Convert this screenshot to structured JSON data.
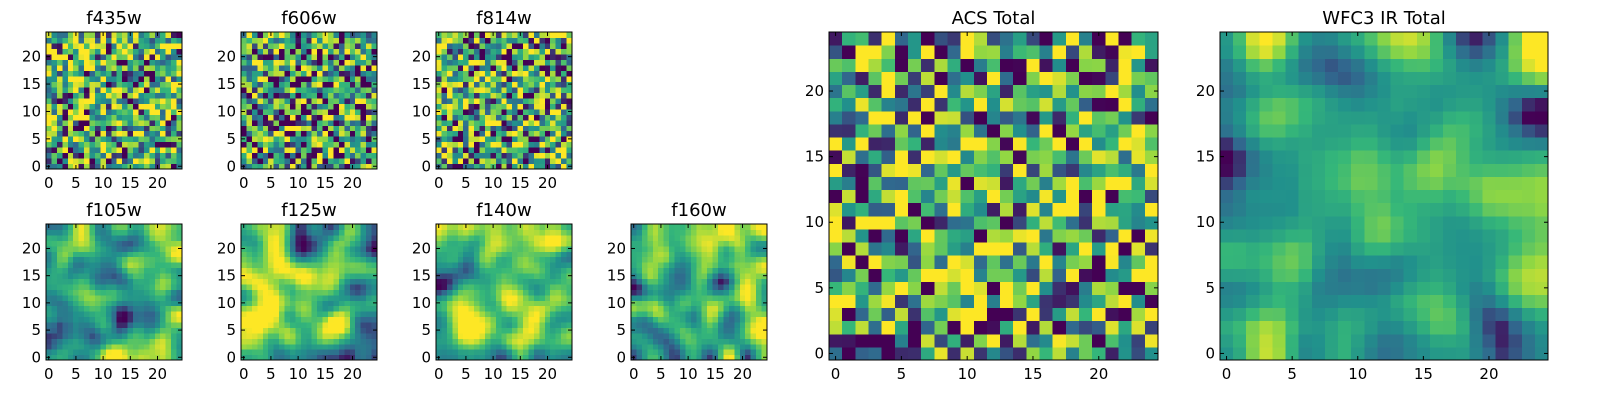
{
  "colormap": [
    "#440154",
    "#31688e",
    "#21918c",
    "#35b779",
    "#90d743",
    "#fde725"
  ],
  "chart_data": [
    {
      "type": "heatmap",
      "id": "f435w",
      "title": "f435w",
      "grid_size": 25,
      "range": [
        0,
        24
      ],
      "xticks": [
        0,
        5,
        10,
        15,
        20
      ],
      "yticks": [
        0,
        5,
        10,
        15,
        20
      ],
      "texture": "noise",
      "bias": 0.05,
      "seed": 11
    },
    {
      "type": "heatmap",
      "id": "f606w",
      "title": "f606w",
      "grid_size": 25,
      "range": [
        0,
        24
      ],
      "xticks": [
        0,
        5,
        10,
        15,
        20
      ],
      "yticks": [
        0,
        5,
        10,
        15,
        20
      ],
      "texture": "noise",
      "bias": -0.02,
      "seed": 23
    },
    {
      "type": "heatmap",
      "id": "f814w",
      "title": "f814w",
      "grid_size": 25,
      "range": [
        0,
        24
      ],
      "xticks": [
        0,
        5,
        10,
        15,
        20
      ],
      "yticks": [
        0,
        5,
        10,
        15,
        20
      ],
      "texture": "noise",
      "bias": 0.03,
      "seed": 37
    },
    {
      "type": "heatmap",
      "id": "f105w",
      "title": "f105w",
      "grid_size": 25,
      "range": [
        0,
        24
      ],
      "xticks": [
        0,
        5,
        10,
        15,
        20
      ],
      "yticks": [
        0,
        5,
        10,
        15,
        20
      ],
      "texture": "smooth",
      "bias": 0.12,
      "seed": 41
    },
    {
      "type": "heatmap",
      "id": "f125w",
      "title": "f125w",
      "grid_size": 25,
      "range": [
        0,
        24
      ],
      "xticks": [
        0,
        5,
        10,
        15,
        20
      ],
      "yticks": [
        0,
        5,
        10,
        15,
        20
      ],
      "texture": "smooth",
      "bias": 0.12,
      "seed": 53
    },
    {
      "type": "heatmap",
      "id": "f140w",
      "title": "f140w",
      "grid_size": 25,
      "range": [
        0,
        24
      ],
      "xticks": [
        0,
        5,
        10,
        15,
        20
      ],
      "yticks": [
        0,
        5,
        10,
        15,
        20
      ],
      "texture": "smooth",
      "bias": 0.1,
      "seed": 67
    },
    {
      "type": "heatmap",
      "id": "f160w",
      "title": "f160w",
      "grid_size": 25,
      "range": [
        0,
        24
      ],
      "xticks": [
        0,
        5,
        10,
        15,
        20
      ],
      "yticks": [
        0,
        5,
        10,
        15,
        20
      ],
      "texture": "smooth",
      "bias": 0.1,
      "seed": 79
    },
    {
      "type": "heatmap",
      "id": "acs-total",
      "title": "ACS Total",
      "grid_size": 25,
      "range": [
        0,
        24
      ],
      "xticks": [
        0,
        5,
        10,
        15,
        20
      ],
      "yticks": [
        0,
        5,
        10,
        15,
        20
      ],
      "texture": "noise",
      "bias": 0.02,
      "seed": 97
    },
    {
      "type": "heatmap",
      "id": "wfc3-ir-total",
      "title": "WFC3 IR Total",
      "grid_size": 25,
      "range": [
        0,
        24
      ],
      "xticks": [
        0,
        5,
        10,
        15,
        20
      ],
      "yticks": [
        0,
        5,
        10,
        15,
        20
      ],
      "texture": "smooth",
      "bias": 0.06,
      "seed": 113
    }
  ]
}
